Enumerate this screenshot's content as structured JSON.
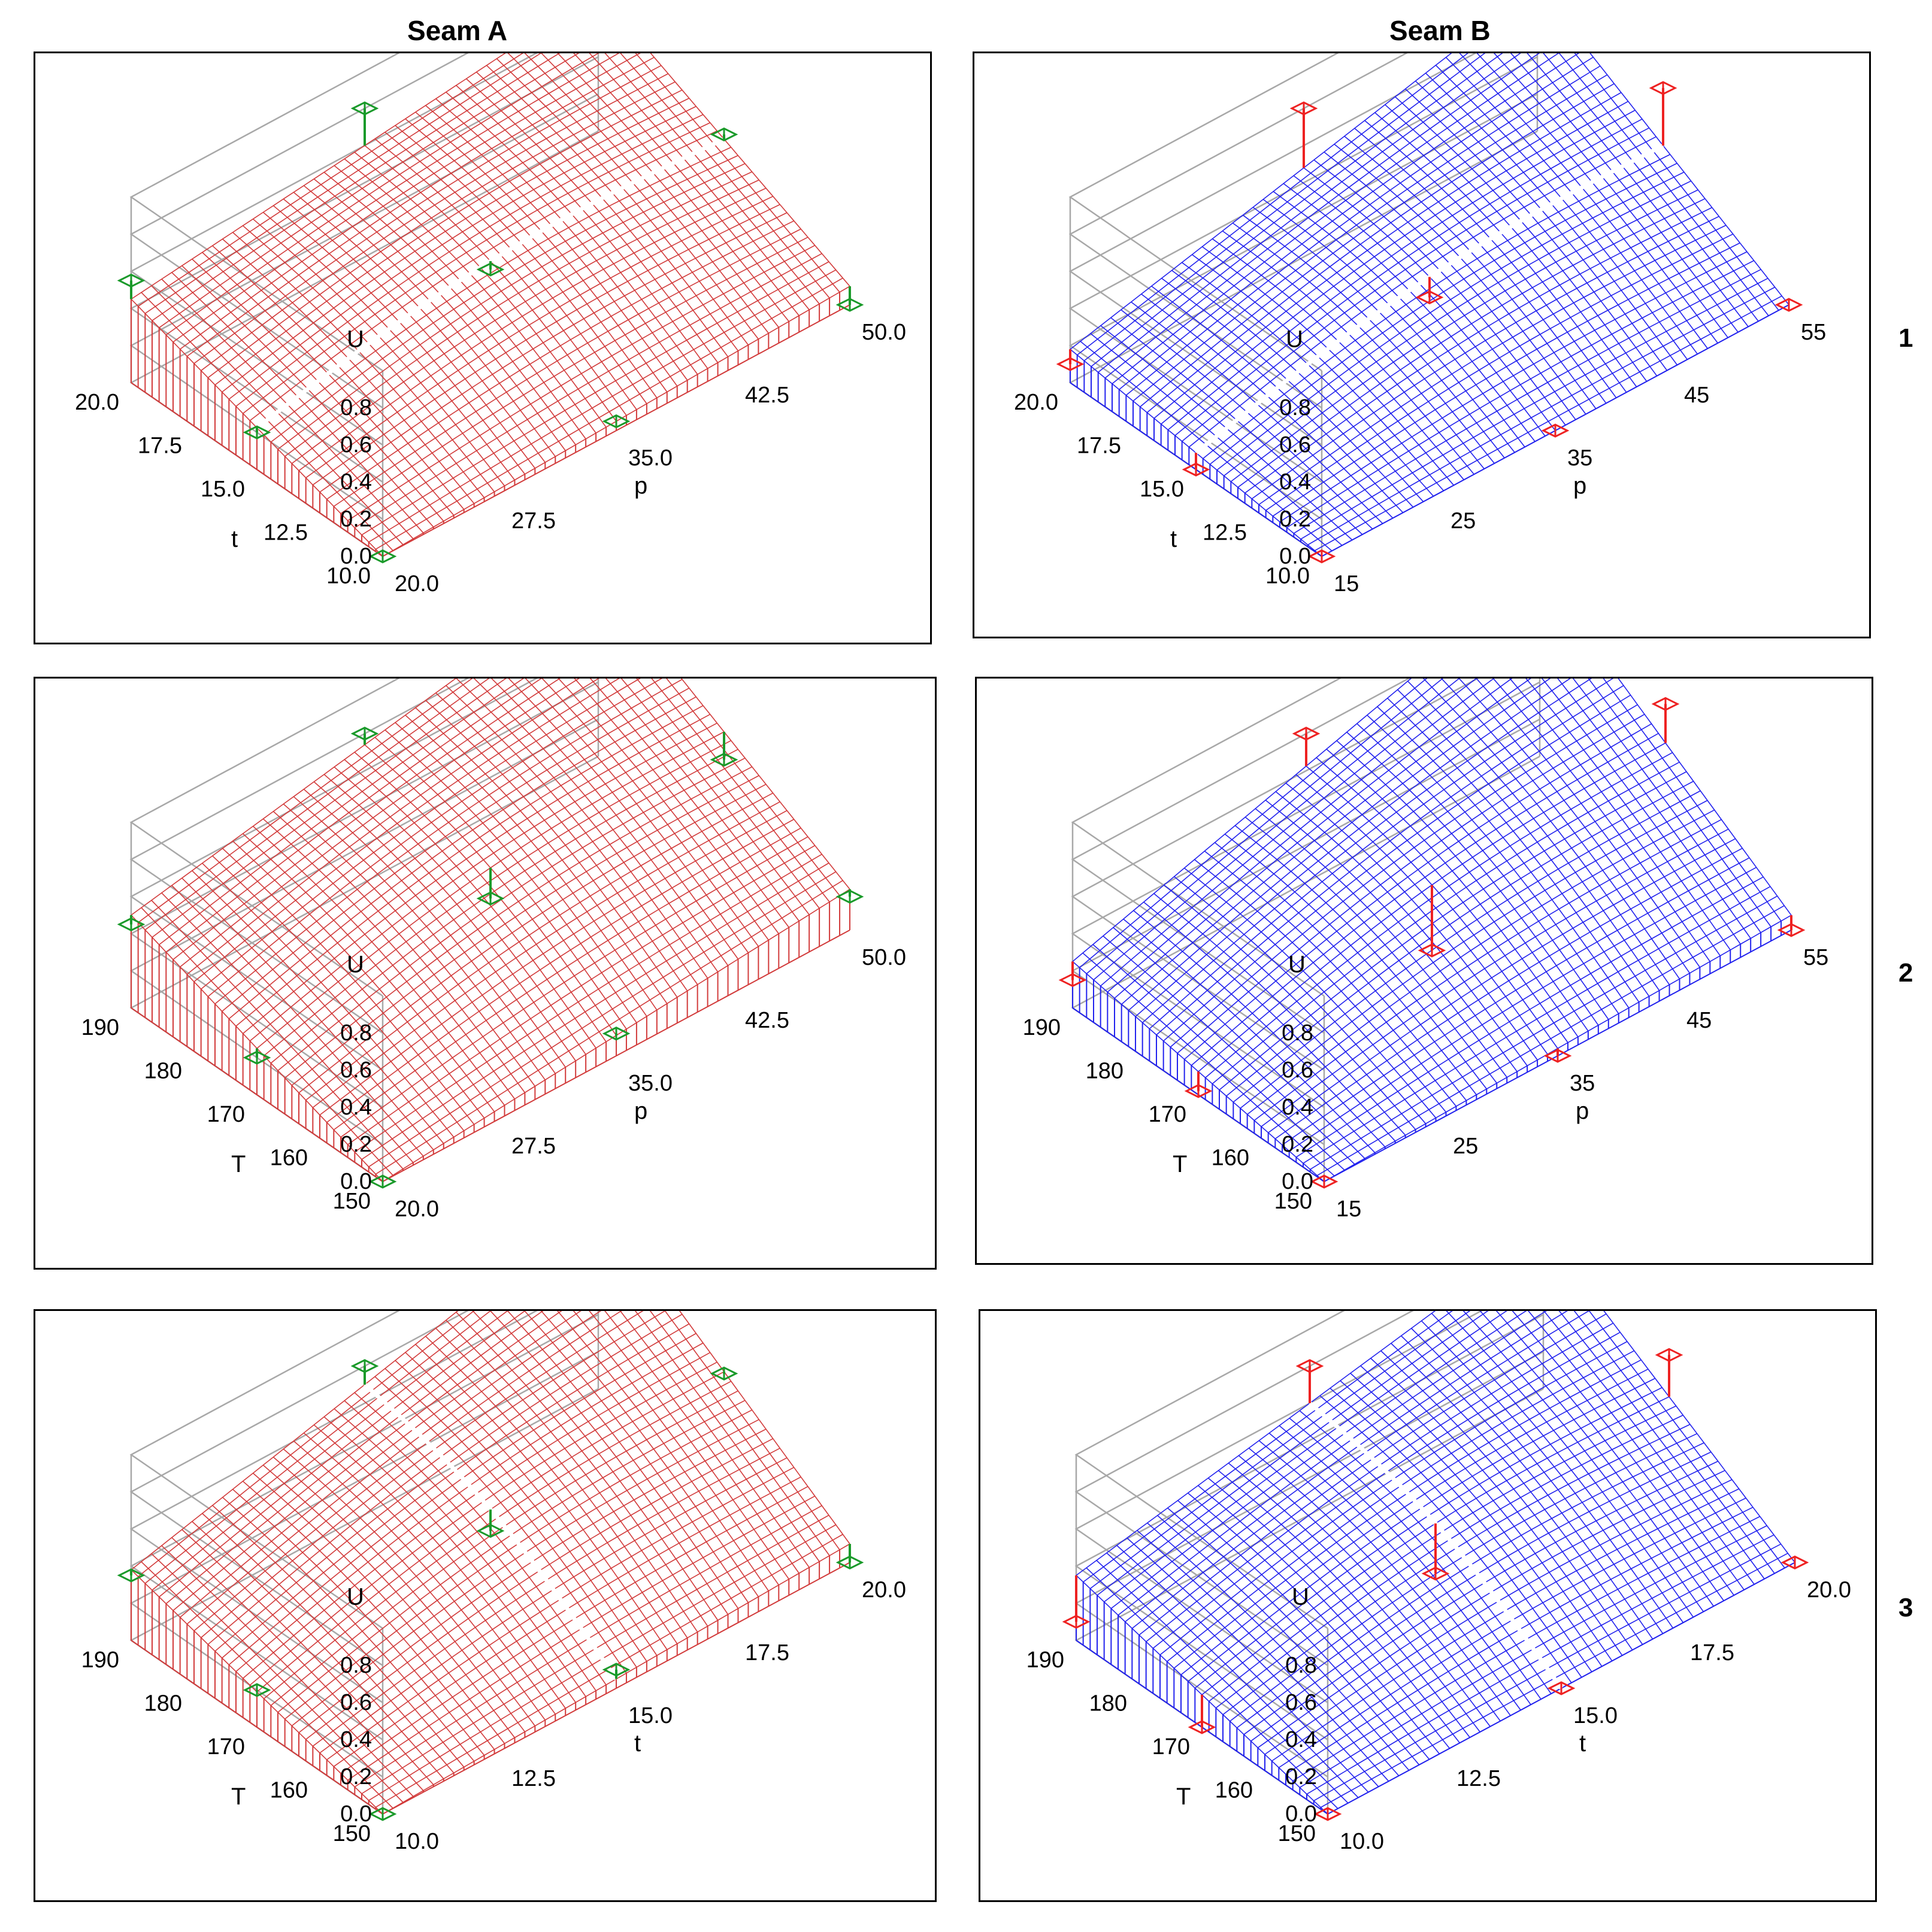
{
  "columns": {
    "a": "Seam  A",
    "b": "Seam B"
  },
  "rows": [
    "1",
    "2",
    "3"
  ],
  "colors": {
    "A": {
      "surface": "#d23b3b",
      "marker": "#1a9a2a",
      "ridge": "#ffffff"
    },
    "B": {
      "surface": "#2222ee",
      "marker": "#ee2222",
      "ridge": "#ffffff"
    },
    "frame": "#a8a8a8"
  },
  "chart_data": [
    {
      "id": "A1",
      "type": "surface3d",
      "zlabel": "U",
      "zticks": [
        "0.0",
        "0.2",
        "0.4",
        "0.6",
        "0.8"
      ],
      "ylabel": "t",
      "yticks": [
        "20.0",
        "17.5",
        "15.0",
        "12.5",
        "10.0"
      ],
      "xlabel": "p",
      "xticks": [
        "20.0",
        "27.5",
        "35.0",
        "42.5",
        "50.0"
      ],
      "corners": [
        0.45,
        0.75,
        0.0,
        0.1
      ],
      "ridge": "p",
      "points": [
        {
          "x": 0.0,
          "y": 1.0,
          "u": 0.55,
          "z": 0.55
        },
        {
          "x": 0.5,
          "y": 1.0,
          "u": 0.8,
          "z": 0.55
        },
        {
          "x": 1.0,
          "y": 1.0,
          "u": 0.9,
          "z": 0.55
        },
        {
          "x": 0.0,
          "y": 0.5,
          "u": 0.2,
          "z": 0.55
        },
        {
          "x": 0.5,
          "y": 0.5,
          "u": 0.4,
          "z": 0.55
        },
        {
          "x": 1.0,
          "y": 0.5,
          "u": 0.45,
          "z": 0.55
        },
        {
          "x": 0.0,
          "y": 0.0,
          "u": 0.0,
          "z": 0.55
        },
        {
          "x": 0.5,
          "y": 0.0,
          "u": 0.05,
          "z": 0.55
        },
        {
          "x": 1.0,
          "y": 0.0,
          "u": 0.0,
          "z": 0.55
        }
      ]
    },
    {
      "id": "B1",
      "type": "surface3d",
      "zlabel": "U",
      "zticks": [
        "0.0",
        "0.2",
        "0.4",
        "0.6",
        "0.8"
      ],
      "ylabel": "t",
      "yticks": [
        "20.0",
        "17.5",
        "15.0",
        "12.5",
        "10.0"
      ],
      "xlabel": "p",
      "xticks": [
        "15",
        "25",
        "35",
        "45",
        "55"
      ],
      "corners": [
        0.18,
        0.78,
        0.0,
        0.0
      ],
      "ridge": "p",
      "points": [
        {
          "x": 0.0,
          "y": 1.0,
          "u": 0.1,
          "z": 0.2
        },
        {
          "x": 0.5,
          "y": 1.0,
          "u": 0.8,
          "z": 0.2
        },
        {
          "x": 1.0,
          "y": 1.0,
          "u": 0.65,
          "z": 0.2
        },
        {
          "x": 0.0,
          "y": 0.5,
          "u": 0.0,
          "z": 0.2
        },
        {
          "x": 0.5,
          "y": 0.5,
          "u": 0.25,
          "z": 0.2
        },
        {
          "x": 1.0,
          "y": 0.5,
          "u": 0.7,
          "z": 0.2
        },
        {
          "x": 0.0,
          "y": 0.0,
          "u": 0.0,
          "z": 0.2
        },
        {
          "x": 0.5,
          "y": 0.0,
          "u": 0.0,
          "z": 0.2
        },
        {
          "x": 1.0,
          "y": 0.0,
          "u": 0.0,
          "z": 0.2
        }
      ]
    },
    {
      "id": "A2",
      "type": "surface3d",
      "zlabel": "U",
      "zticks": [
        "0.0",
        "0.2",
        "0.4",
        "0.6",
        "0.8"
      ],
      "ylabel": "T",
      "yticks": [
        "190",
        "180",
        "170",
        "160",
        "150"
      ],
      "xlabel": "p",
      "xticks": [
        "20.0",
        "27.5",
        "35.0",
        "42.5",
        "50.0"
      ],
      "corners": [
        0.5,
        0.98,
        0.0,
        0.22
      ],
      "ridge": "",
      "points": [
        {
          "x": 0.0,
          "y": 1.0,
          "u": 0.45,
          "z": 0.5
        },
        {
          "x": 0.5,
          "y": 1.0,
          "u": 0.8,
          "z": 0.5
        },
        {
          "x": 1.0,
          "y": 1.0,
          "u": 0.98,
          "z": 0.5
        },
        {
          "x": 0.0,
          "y": 0.5,
          "u": 0.2,
          "z": 0.5
        },
        {
          "x": 0.5,
          "y": 0.5,
          "u": 0.38,
          "z": 0.5
        },
        {
          "x": 1.0,
          "y": 0.5,
          "u": 0.45,
          "z": 0.5
        },
        {
          "x": 0.0,
          "y": 0.0,
          "u": 0.0,
          "z": 0.5
        },
        {
          "x": 0.5,
          "y": 0.0,
          "u": 0.12,
          "z": 0.5
        },
        {
          "x": 1.0,
          "y": 0.0,
          "u": 0.18,
          "z": 0.5
        }
      ]
    },
    {
      "id": "B2",
      "type": "surface3d",
      "zlabel": "U",
      "zticks": [
        "0.0",
        "0.2",
        "0.4",
        "0.6",
        "0.8"
      ],
      "ylabel": "T",
      "yticks": [
        "190",
        "180",
        "170",
        "160",
        "150"
      ],
      "xlabel": "p",
      "xticks": [
        "15",
        "25",
        "35",
        "45",
        "55"
      ],
      "corners": [
        0.25,
        1.0,
        0.0,
        0.08
      ],
      "ridge": "",
      "points": [
        {
          "x": 0.0,
          "y": 1.0,
          "u": 0.15,
          "z": 0.3
        },
        {
          "x": 0.5,
          "y": 1.0,
          "u": 0.8,
          "z": 0.3
        },
        {
          "x": 1.0,
          "y": 1.0,
          "u": 1.0,
          "z": 0.3
        },
        {
          "x": 0.0,
          "y": 0.5,
          "u": 0.02,
          "z": 0.3
        },
        {
          "x": 0.5,
          "y": 0.5,
          "u": 0.1,
          "z": 0.3
        },
        {
          "x": 1.0,
          "y": 0.5,
          "u": 0.75,
          "z": 0.3
        },
        {
          "x": 0.0,
          "y": 0.0,
          "u": 0.0,
          "z": 0.3
        },
        {
          "x": 0.5,
          "y": 0.0,
          "u": 0.0,
          "z": 0.3
        },
        {
          "x": 1.0,
          "y": 0.0,
          "u": 0.0,
          "z": 0.3
        }
      ]
    },
    {
      "id": "A3",
      "type": "surface3d",
      "zlabel": "U",
      "zticks": [
        "0.0",
        "0.2",
        "0.4",
        "0.6",
        "0.8"
      ],
      "ylabel": "T",
      "yticks": [
        "190",
        "180",
        "170",
        "160",
        "150"
      ],
      "xlabel": "t",
      "xticks": [
        "10.0",
        "12.5",
        "15.0",
        "17.5",
        "20.0"
      ],
      "corners": [
        0.38,
        1.02,
        0.0,
        0.1
      ],
      "ridge": "t",
      "points": [
        {
          "x": 0.0,
          "y": 1.0,
          "u": 0.35,
          "z": 0.45
        },
        {
          "x": 0.5,
          "y": 1.0,
          "u": 0.8,
          "z": 0.45
        },
        {
          "x": 1.0,
          "y": 1.0,
          "u": 0.9,
          "z": 0.45
        },
        {
          "x": 0.0,
          "y": 0.5,
          "u": 0.2,
          "z": 0.45
        },
        {
          "x": 0.5,
          "y": 0.5,
          "u": 0.38,
          "z": 0.45
        },
        {
          "x": 1.0,
          "y": 0.5,
          "u": 0.55,
          "z": 0.45
        },
        {
          "x": 0.0,
          "y": 0.0,
          "u": 0.0,
          "z": 0.45
        },
        {
          "x": 0.5,
          "y": 0.0,
          "u": 0.1,
          "z": 0.45
        },
        {
          "x": 1.0,
          "y": 0.0,
          "u": 0.0,
          "z": 0.45
        }
      ]
    },
    {
      "id": "B3",
      "type": "surface3d",
      "zlabel": "U",
      "zticks": [
        "0.0",
        "0.2",
        "0.4",
        "0.6",
        "0.8"
      ],
      "ylabel": "T",
      "yticks": [
        "190",
        "180",
        "170",
        "160",
        "150"
      ],
      "xlabel": "t",
      "xticks": [
        "10.0",
        "12.5",
        "15.0",
        "17.5",
        "20.0"
      ],
      "corners": [
        0.35,
        0.85,
        0.0,
        0.0
      ],
      "ridge": "t",
      "points": [
        {
          "x": 0.0,
          "y": 1.0,
          "u": 0.1,
          "z": 0.35
        },
        {
          "x": 0.5,
          "y": 1.0,
          "u": 0.8,
          "z": 0.35
        },
        {
          "x": 1.0,
          "y": 1.0,
          "u": 0.9,
          "z": 0.35
        },
        {
          "x": 0.0,
          "y": 0.5,
          "u": 0.0,
          "z": 0.35
        },
        {
          "x": 0.5,
          "y": 0.5,
          "u": 0.15,
          "z": 0.35
        },
        {
          "x": 1.0,
          "y": 0.5,
          "u": 0.65,
          "z": 0.35
        },
        {
          "x": 0.0,
          "y": 0.0,
          "u": 0.0,
          "z": 0.35
        },
        {
          "x": 0.5,
          "y": 0.0,
          "u": 0.0,
          "z": 0.35
        },
        {
          "x": 1.0,
          "y": 0.0,
          "u": 0.0,
          "z": 0.35
        }
      ]
    }
  ]
}
